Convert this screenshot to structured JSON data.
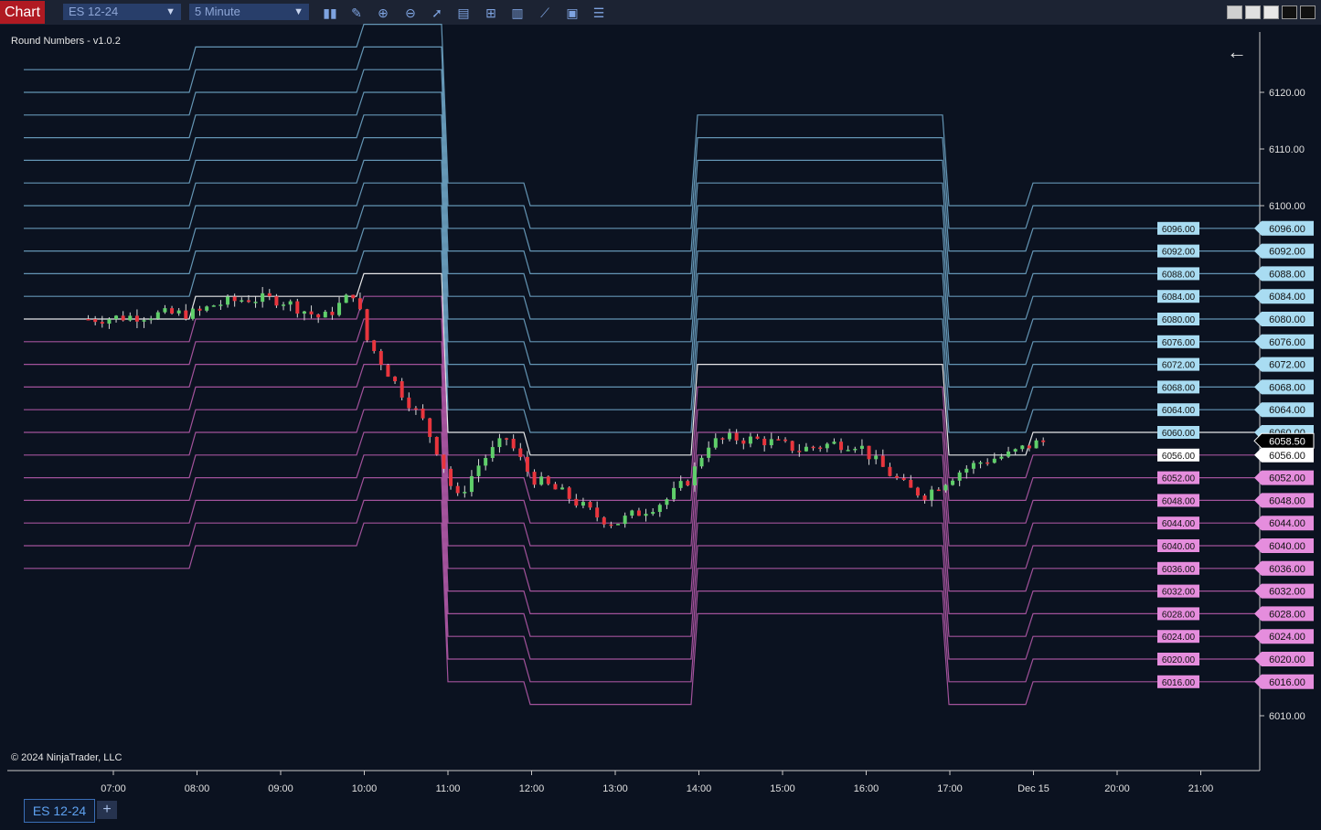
{
  "toolbar": {
    "chart_tab": "Chart",
    "instrument": "ES 12-24",
    "interval": "5 Minute",
    "icons": [
      "bar-type-icon",
      "drawing-pencil-icon",
      "zoom-in-icon",
      "zoom-out-icon",
      "pointer-icon",
      "data-box-icon",
      "properties-icon",
      "indicators-icon",
      "strategies-icon",
      "templates-icon",
      "list-icon"
    ]
  },
  "chart": {
    "indicator_label": "Round Numbers - v1.0.2",
    "copyright": "© 2024 NinjaTrader, LLC",
    "current_price": "6058.50",
    "background": "#0b1220",
    "colors": {
      "above": "#6ea4c4",
      "below": "#b25aa8",
      "current": "#ffffff",
      "up_candle": "#5fcf6a",
      "down_candle": "#e8353d"
    }
  },
  "chart_data": {
    "type": "candlestick",
    "title": "ES 12-24",
    "y_axis": {
      "ticks": [
        6120,
        6110,
        6100,
        6010
      ],
      "ylim": [
        6006,
        6133
      ]
    },
    "x_axis": {
      "ticks": [
        "07:00",
        "08:00",
        "09:00",
        "10:00",
        "11:00",
        "12:00",
        "13:00",
        "14:00",
        "15:00",
        "16:00",
        "17:00",
        "Dec 15",
        "20:00",
        "21:00"
      ]
    },
    "round_number_labels": [
      "6096.00",
      "6092.00",
      "6088.00",
      "6084.00",
      "6080.00",
      "6076.00",
      "6072.00",
      "6068.00",
      "6064.00",
      "6060.00",
      "6056.00",
      "6052.00",
      "6048.00",
      "6044.00",
      "6040.00",
      "6036.00",
      "6032.00",
      "6028.00",
      "6024.00",
      "6020.00",
      "6016.00"
    ],
    "close_path": [
      [
        6.7,
        6080.0
      ],
      [
        7.0,
        6080.2
      ],
      [
        7.5,
        6080.8
      ],
      [
        8.0,
        6081.0
      ],
      [
        8.2,
        6082.5
      ],
      [
        8.6,
        6083.6
      ],
      [
        9.0,
        6083.4
      ],
      [
        9.5,
        6080.0
      ],
      [
        9.9,
        6085.0
      ],
      [
        10.0,
        6077.0
      ],
      [
        10.4,
        6068.0
      ],
      [
        10.7,
        6062.0
      ],
      [
        10.9,
        6056.0
      ],
      [
        11.1,
        6048.0
      ],
      [
        11.4,
        6055.0
      ],
      [
        11.7,
        6059.0
      ],
      [
        12.0,
        6052.0
      ],
      [
        12.4,
        6049.0
      ],
      [
        12.8,
        6045.0
      ],
      [
        13.0,
        6044.0
      ],
      [
        13.3,
        6046.0
      ],
      [
        13.6,
        6048.0
      ],
      [
        13.9,
        6052.0
      ],
      [
        14.1,
        6058.0
      ],
      [
        14.4,
        6059.0
      ],
      [
        14.8,
        6058.5
      ],
      [
        15.2,
        6057.0
      ],
      [
        15.6,
        6058.0
      ],
      [
        15.9,
        6058.0
      ],
      [
        16.1,
        6055.0
      ],
      [
        16.5,
        6050.0
      ],
      [
        16.7,
        6049.0
      ],
      [
        17.1,
        6053.0
      ],
      [
        17.4,
        6055.0
      ],
      [
        17.7,
        6056.0
      ],
      [
        18.0,
        6058.0
      ],
      [
        18.2,
        6058.5
      ]
    ]
  },
  "bottom_tabs": {
    "active": "ES 12-24",
    "add": "+"
  }
}
